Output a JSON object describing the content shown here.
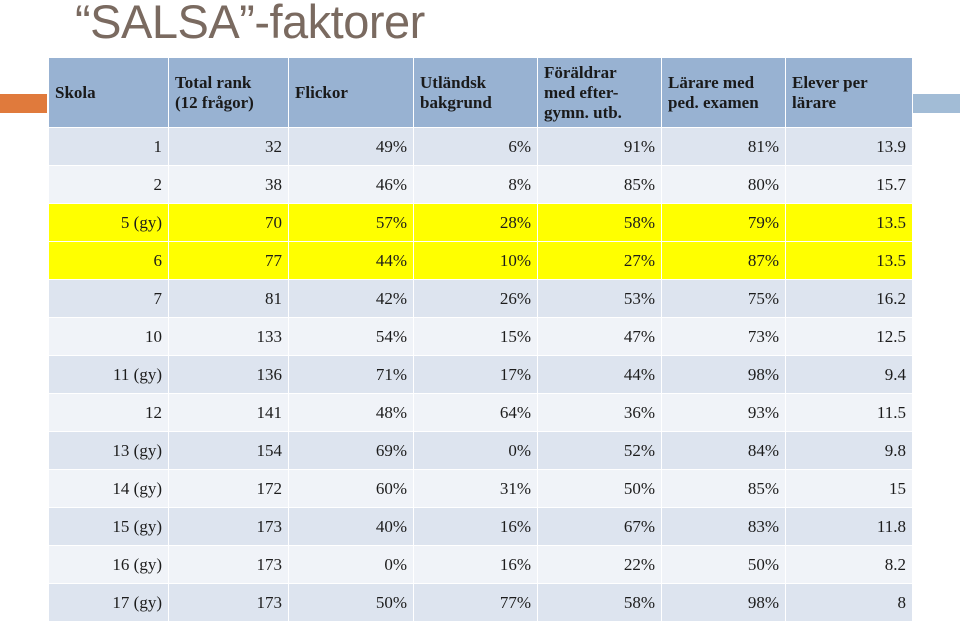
{
  "title": "“SALSA”-faktorer",
  "headers": [
    {
      "line1": "Skola",
      "line2": ""
    },
    {
      "line1": "Total rank",
      "line2": "(12 frågor)"
    },
    {
      "line1": "Flickor",
      "line2": ""
    },
    {
      "line1": "Utländsk",
      "line2": "bakgrund"
    },
    {
      "line1": "Föräldrar",
      "line2": "med efter-\ngymn. utb."
    },
    {
      "line1": "Lärare med",
      "line2": "ped. examen"
    },
    {
      "line1": "Elever per",
      "line2": "lärare"
    }
  ],
  "rows": [
    {
      "cells": [
        "1",
        "32",
        "49%",
        "6%",
        "91%",
        "81%",
        "13.9"
      ],
      "highlight": false
    },
    {
      "cells": [
        "2",
        "38",
        "46%",
        "8%",
        "85%",
        "80%",
        "15.7"
      ],
      "highlight": false
    },
    {
      "cells": [
        "5 (gy)",
        "70",
        "57%",
        "28%",
        "58%",
        "79%",
        "13.5"
      ],
      "highlight": true
    },
    {
      "cells": [
        "6",
        "77",
        "44%",
        "10%",
        "27%",
        "87%",
        "13.5"
      ],
      "highlight": true
    },
    {
      "cells": [
        "7",
        "81",
        "42%",
        "26%",
        "53%",
        "75%",
        "16.2"
      ],
      "highlight": false
    },
    {
      "cells": [
        "10",
        "133",
        "54%",
        "15%",
        "47%",
        "73%",
        "12.5"
      ],
      "highlight": false
    },
    {
      "cells": [
        "11 (gy)",
        "136",
        "71%",
        "17%",
        "44%",
        "98%",
        "9.4"
      ],
      "highlight": false
    },
    {
      "cells": [
        "12",
        "141",
        "48%",
        "64%",
        "36%",
        "93%",
        "11.5"
      ],
      "highlight": false
    },
    {
      "cells": [
        "13 (gy)",
        "154",
        "69%",
        "0%",
        "52%",
        "84%",
        "9.8"
      ],
      "highlight": false
    },
    {
      "cells": [
        "14 (gy)",
        "172",
        "60%",
        "31%",
        "50%",
        "85%",
        "15"
      ],
      "highlight": false
    },
    {
      "cells": [
        "15  (gy)",
        "173",
        "40%",
        "16%",
        "67%",
        "83%",
        "11.8"
      ],
      "highlight": false
    },
    {
      "cells": [
        "16 (gy)",
        "173",
        "0%",
        "16%",
        "22%",
        "50%",
        "8.2"
      ],
      "highlight": false
    },
    {
      "cells": [
        "17 (gy)",
        "173",
        "50%",
        "77%",
        "58%",
        "98%",
        "8"
      ],
      "highlight": false
    }
  ],
  "colors": {
    "header_bg": "#98b2d2",
    "row_odd": "#dde4ef",
    "row_even": "#f0f3f8",
    "highlight": "#ffff00",
    "accent_left": "#e07a3c",
    "accent_right": "#a2bcd6",
    "title_color": "#7a6a60"
  }
}
